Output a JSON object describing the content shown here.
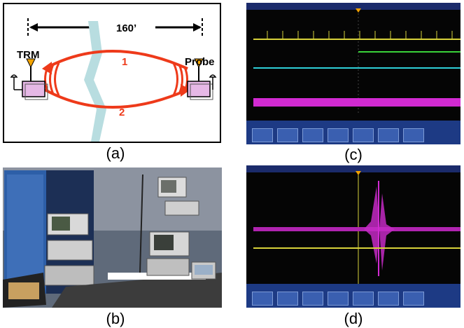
{
  "panel_a": {
    "distance_label": "160’",
    "left_device": "TRM",
    "right_device": "Probe",
    "path_1": "1",
    "path_2": "2",
    "colors": {
      "path": "#ee3a1a",
      "obstacle": "#b8dde0",
      "device": "#e6b8e6"
    }
  },
  "captions": {
    "a": "(a)",
    "b": "(b)",
    "c": "(c)",
    "d": "(d)"
  },
  "scope_colors": {
    "ch1": "#d8d23a",
    "ch2": "#2fcfd8",
    "ch3": "#d22ad2",
    "ch4": "#3ad23a"
  }
}
